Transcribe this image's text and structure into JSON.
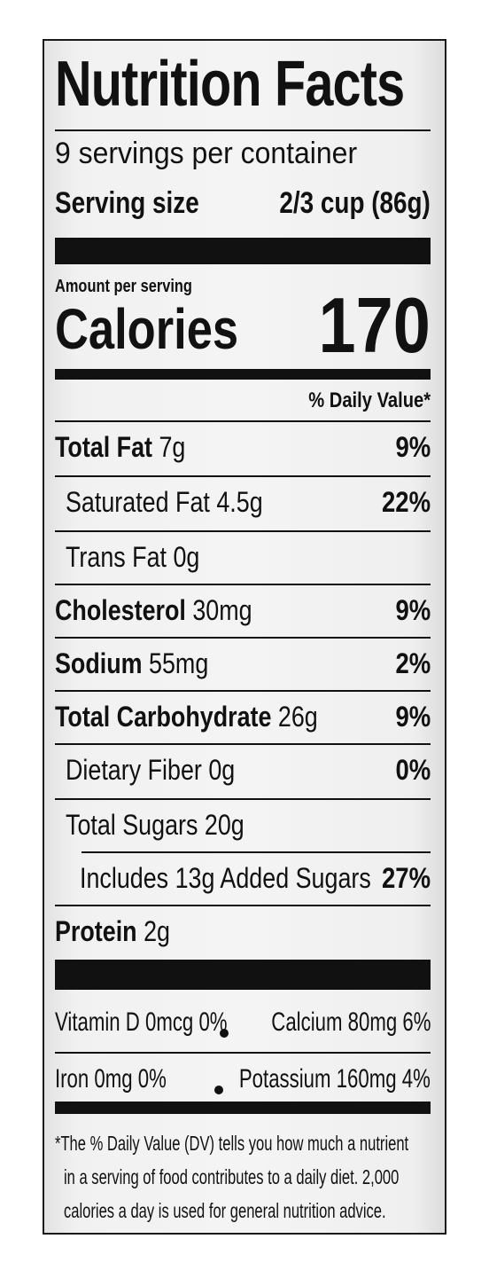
{
  "title": "Nutrition Facts",
  "servings": "9 servings per container",
  "serving_size": {
    "label": "Serving size",
    "value": "2/3 cup (86g)"
  },
  "amount_per_serving": "Amount per serving",
  "calories": {
    "label": "Calories",
    "value": "170"
  },
  "daily_value_header": "% Daily Value*",
  "nutrients": [
    {
      "bold": "Total Fat",
      "amount": "7g",
      "dv": "9%"
    },
    {
      "bold": "",
      "amount": "Saturated Fat 4.5g",
      "dv": "22%"
    },
    {
      "bold": "",
      "amount": "Trans Fat 0g",
      "dv": ""
    },
    {
      "bold": "Cholesterol",
      "amount": "30mg",
      "dv": "9%"
    },
    {
      "bold": "Sodium",
      "amount": "55mg",
      "dv": "2%"
    },
    {
      "bold": "Total Carbohydrate",
      "amount": "26g",
      "dv": "9%"
    },
    {
      "bold": "",
      "amount": "Dietary Fiber 0g",
      "dv": "0%"
    },
    {
      "bold": "",
      "amount": "Total Sugars 20g",
      "dv": ""
    },
    {
      "bold": "",
      "amount": "Includes 13g Added Sugars",
      "dv": "27%"
    },
    {
      "bold": "Protein",
      "amount": "2g",
      "dv": ""
    }
  ],
  "vitamins": [
    {
      "text": "Vitamin D 0mcg 0%"
    },
    {
      "text": "Calcium 80mg 6%"
    },
    {
      "text": "Iron 0mg 0%"
    },
    {
      "text": "Potassium 160mg 4%"
    }
  ],
  "footnote": [
    "*The % Daily Value (DV) tells you how much a nutrient",
    "in a serving of food contributes to a daily diet. 2,000",
    "calories a day is used for general nutrition advice."
  ]
}
